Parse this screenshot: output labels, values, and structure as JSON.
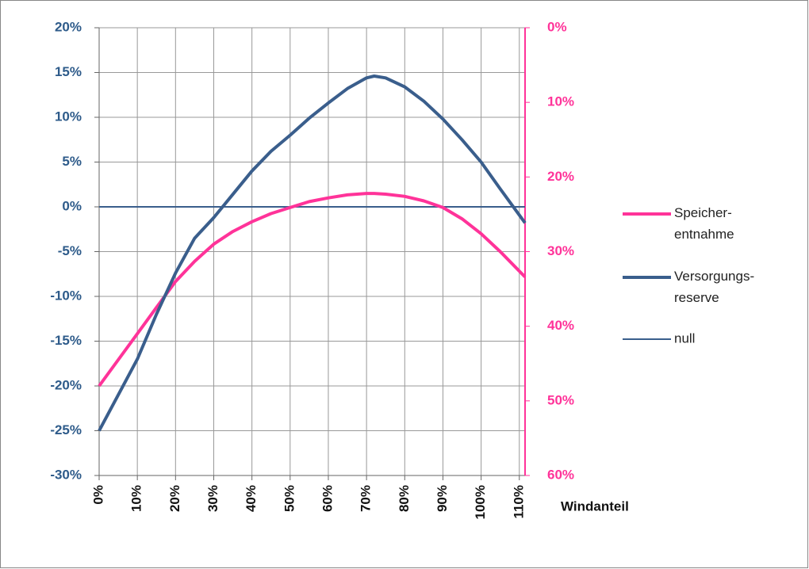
{
  "chart_data": {
    "type": "line",
    "x": [
      0,
      5,
      10,
      15,
      20,
      25,
      30,
      35,
      40,
      45,
      50,
      55,
      60,
      65,
      70,
      72,
      75,
      80,
      85,
      90,
      95,
      100,
      105,
      111.5
    ],
    "xlim": [
      0,
      111.5
    ],
    "xticks": [
      {
        "value": 0,
        "label": "0%"
      },
      {
        "value": 10,
        "label": "10%"
      },
      {
        "value": 20,
        "label": "20%"
      },
      {
        "value": 30,
        "label": "30%"
      },
      {
        "value": 40,
        "label": "40%"
      },
      {
        "value": 50,
        "label": "50%"
      },
      {
        "value": 60,
        "label": "60%"
      },
      {
        "value": 70,
        "label": "70%"
      },
      {
        "value": 80,
        "label": "80%"
      },
      {
        "value": 90,
        "label": "90%"
      },
      {
        "value": 100,
        "label": "100%"
      },
      {
        "value": 110,
        "label": "110%"
      }
    ],
    "x_label": "Windanteil",
    "ylim": [
      -30,
      20
    ],
    "yticks": [
      {
        "value": 20,
        "label": "20%"
      },
      {
        "value": 15,
        "label": "15%"
      },
      {
        "value": 10,
        "label": "10%"
      },
      {
        "value": 5,
        "label": "5%"
      },
      {
        "value": 0,
        "label": "0%"
      },
      {
        "value": -5,
        "label": "-5%"
      },
      {
        "value": -10,
        "label": "-10%"
      },
      {
        "value": -15,
        "label": "-15%"
      },
      {
        "value": -20,
        "label": "-20%"
      },
      {
        "value": -25,
        "label": "-25%"
      },
      {
        "value": -30,
        "label": "-30%"
      }
    ],
    "y2lim": [
      0,
      60
    ],
    "y2_inverted": true,
    "y2ticks": [
      {
        "value": 0,
        "label": "0%"
      },
      {
        "value": 10,
        "label": "10%"
      },
      {
        "value": 20,
        "label": "20%"
      },
      {
        "value": 30,
        "label": "30%"
      },
      {
        "value": 40,
        "label": "40%"
      },
      {
        "value": 50,
        "label": "50%"
      },
      {
        "value": 60,
        "label": "60%"
      }
    ],
    "grid": true,
    "legend": "right",
    "series": [
      {
        "name": "Speicher-\nentnahme",
        "color": "#ff3399",
        "axis": "y2",
        "width": 4,
        "values": [
          48,
          44.5,
          41,
          37.5,
          34,
          31.3,
          29,
          27.3,
          26,
          24.9,
          24.1,
          23.3,
          22.8,
          22.4,
          22.2,
          22.2,
          22.3,
          22.6,
          23.2,
          24.1,
          25.6,
          27.6,
          30,
          33.4
        ]
      },
      {
        "name": "Versorgungs-\nreserve",
        "color": "#3a5e8c",
        "width": 4,
        "values": [
          -25,
          -21,
          -17,
          -12,
          -7.4,
          -3.5,
          -1.2,
          1.4,
          4,
          6.2,
          8,
          9.9,
          11.6,
          13.2,
          14.4,
          14.6,
          14.4,
          13.4,
          11.8,
          9.8,
          7.5,
          5,
          2,
          -1.8
        ]
      },
      {
        "name": "null",
        "color": "#3a5e8c",
        "width": 2,
        "values": [
          0,
          0,
          0,
          0,
          0,
          0,
          0,
          0,
          0,
          0,
          0,
          0,
          0,
          0,
          0,
          0,
          0,
          0,
          0,
          0,
          0,
          0,
          0,
          0
        ]
      }
    ]
  }
}
